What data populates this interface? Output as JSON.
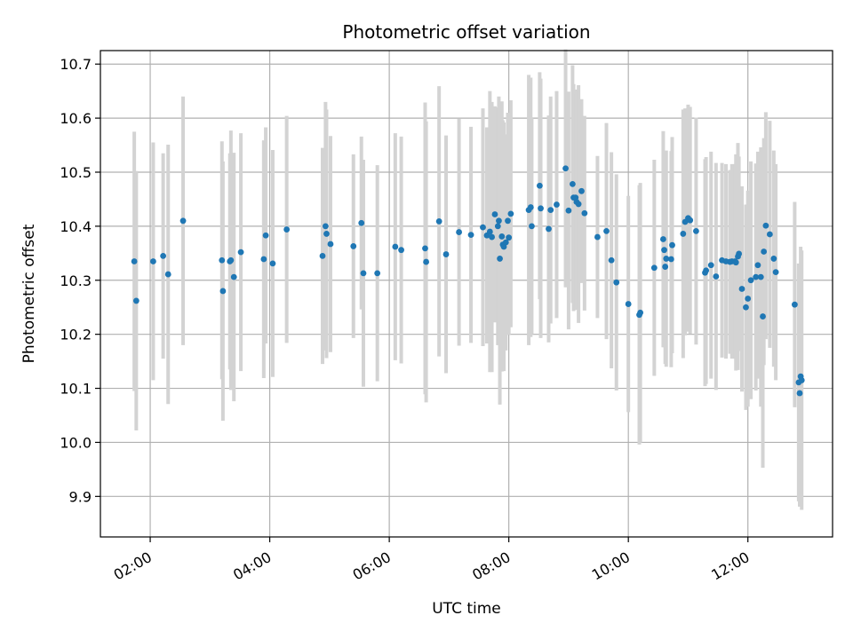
{
  "chart_data": {
    "type": "scatter",
    "title": "Photometric offset variation",
    "xlabel": "UTC time",
    "ylabel": "Photometric offset",
    "xlim": [
      "01:10",
      "13:25"
    ],
    "ylim": [
      9.825,
      10.725
    ],
    "grid": true,
    "colors": {
      "point": "#1f77b4",
      "error_bar": "#d3d3d3",
      "grid": "#b0b0b0"
    },
    "x_ticks": [
      "02:00",
      "04:00",
      "06:00",
      "08:00",
      "10:00",
      "12:00"
    ],
    "y_ticks": [
      "9.9",
      "10.0",
      "10.1",
      "10.2",
      "10.3",
      "10.4",
      "10.5",
      "10.6",
      "10.7"
    ],
    "series": [
      {
        "x": [
          "01:44",
          "01:46",
          "02:03",
          "02:13",
          "02:18",
          "02:33",
          "03:12",
          "03:13",
          "03:20",
          "03:21",
          "03:24",
          "03:31",
          "03:54",
          "03:56",
          "04:03",
          "04:17",
          "04:53",
          "04:56",
          "04:57",
          "05:01",
          "05:24",
          "05:32",
          "05:34",
          "05:48",
          "06:06",
          "06:12",
          "06:36",
          "06:37",
          "06:50",
          "06:57",
          "07:10",
          "07:22",
          "07:34",
          "07:38",
          "07:41",
          "07:43",
          "07:46",
          "07:49",
          "07:50",
          "07:51",
          "07:53",
          "07:54",
          "07:55",
          "07:57",
          "07:59",
          "08:00",
          "08:02",
          "08:20",
          "08:22",
          "08:23",
          "08:31",
          "08:32",
          "08:40",
          "08:42",
          "08:48",
          "08:57",
          "09:00",
          "09:04",
          "09:05",
          "09:07",
          "09:08",
          "09:10",
          "09:13",
          "09:16",
          "09:29",
          "09:38",
          "09:43",
          "09:48",
          "10:00",
          "10:11",
          "10:12",
          "10:26",
          "10:35",
          "10:36",
          "10:37",
          "10:38",
          "10:43",
          "10:44",
          "10:55",
          "10:57",
          "11:00",
          "11:02",
          "11:08",
          "11:17",
          "11:18",
          "11:23",
          "11:28",
          "11:34",
          "11:38",
          "11:42",
          "11:44",
          "11:47",
          "11:48",
          "11:50",
          "11:51",
          "11:54",
          "11:58",
          "12:00",
          "12:03",
          "12:08",
          "12:10",
          "12:13",
          "12:15",
          "12:16",
          "12:18",
          "12:22",
          "12:26",
          "12:28",
          "12:47",
          "12:51",
          "12:52",
          "12:53",
          "12:54"
        ],
        "y": [
          10.335,
          10.262,
          10.335,
          10.345,
          10.311,
          10.41,
          10.337,
          10.28,
          10.335,
          10.337,
          10.306,
          10.352,
          10.339,
          10.383,
          10.331,
          10.394,
          10.345,
          10.4,
          10.386,
          10.367,
          10.363,
          10.406,
          10.313,
          10.313,
          10.362,
          10.356,
          10.359,
          10.334,
          10.409,
          10.348,
          10.389,
          10.384,
          10.398,
          10.383,
          10.39,
          10.38,
          10.422,
          10.4,
          10.41,
          10.34,
          10.381,
          10.366,
          10.362,
          10.37,
          10.41,
          10.379,
          10.423,
          10.43,
          10.435,
          10.4,
          10.475,
          10.433,
          10.395,
          10.43,
          10.44,
          10.507,
          10.429,
          10.478,
          10.453,
          10.453,
          10.445,
          10.441,
          10.465,
          10.424,
          10.38,
          10.391,
          10.337,
          10.296,
          10.256,
          10.236,
          10.24,
          10.323,
          10.376,
          10.356,
          10.325,
          10.34,
          10.339,
          10.365,
          10.386,
          10.408,
          10.415,
          10.411,
          10.391,
          10.314,
          10.318,
          10.328,
          10.307,
          10.337,
          10.335,
          10.334,
          10.335,
          10.335,
          10.333,
          10.344,
          10.349,
          10.284,
          10.25,
          10.266,
          10.3,
          10.306,
          10.328,
          10.306,
          10.233,
          10.353,
          10.401,
          10.385,
          10.34,
          10.315,
          10.255,
          10.111,
          10.091,
          10.122,
          10.115
        ],
        "err": [
          0.24,
          0.24,
          0.22,
          0.19,
          0.24,
          0.23,
          0.22,
          0.24,
          0.2,
          0.24,
          0.23,
          0.22,
          0.22,
          0.2,
          0.21,
          0.21,
          0.2,
          0.23,
          0.23,
          0.2,
          0.17,
          0.16,
          0.21,
          0.2,
          0.21,
          0.21,
          0.27,
          0.26,
          0.25,
          0.22,
          0.21,
          0.2,
          0.22,
          0.2,
          0.26,
          0.25,
          0.2,
          0.22,
          0.23,
          0.27,
          0.25,
          0.23,
          0.23,
          0.2,
          0.2,
          0.18,
          0.21,
          0.25,
          0.24,
          0.2,
          0.21,
          0.24,
          0.21,
          0.21,
          0.21,
          0.22,
          0.22,
          0.22,
          0.21,
          0.2,
          0.2,
          0.22,
          0.17,
          0.18,
          0.15,
          0.2,
          0.2,
          0.2,
          0.2,
          0.24,
          0.24,
          0.2,
          0.2,
          0.18,
          0.18,
          0.2,
          0.2,
          0.2,
          0.23,
          0.21,
          0.21,
          0.21,
          0.21,
          0.21,
          0.21,
          0.21,
          0.21,
          0.18,
          0.18,
          0.17,
          0.18,
          0.18,
          0.2,
          0.21,
          0.18,
          0.19,
          0.19,
          0.2,
          0.22,
          0.21,
          0.21,
          0.24,
          0.28,
          0.21,
          0.21,
          0.21,
          0.2,
          0.2,
          0.19,
          0.22,
          0.21,
          0.24,
          0.24
        ]
      }
    ]
  }
}
